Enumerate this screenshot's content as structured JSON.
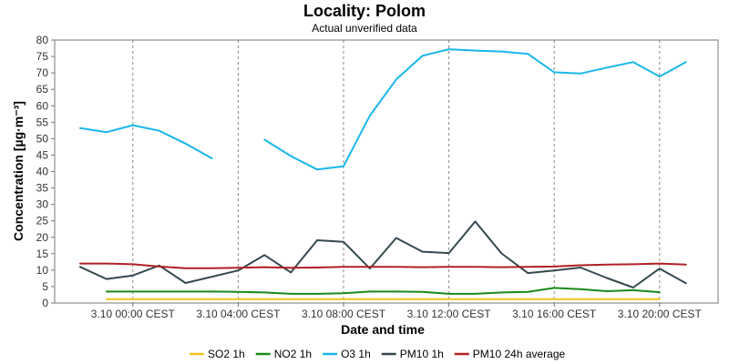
{
  "chart_data": {
    "type": "line",
    "title": "Locality: Polom",
    "subtitle": "Actual unverified data",
    "xlabel": "Date and time",
    "ylabel": "Concentration [µg·m⁻³]",
    "ylim": [
      0,
      80
    ],
    "y_ticks": [
      0,
      5,
      10,
      15,
      20,
      25,
      30,
      35,
      40,
      45,
      50,
      55,
      60,
      65,
      70,
      75,
      80
    ],
    "x_range": [
      "3.10 22:00 CEST",
      "3.10 21:00 CEST"
    ],
    "x": [
      "3.10 22:00 CEST",
      "3.10 23:00 CEST",
      "3.10 00:00 CEST",
      "3.10 01:00 CEST",
      "3.10 02:00 CEST",
      "3.10 03:00 CEST",
      "3.10 04:00 CEST",
      "3.10 05:00 CEST",
      "3.10 06:00 CEST",
      "3.10 07:00 CEST",
      "3.10 08:00 CEST",
      "3.10 09:00 CEST",
      "3.10 10:00 CEST",
      "3.10 11:00 CEST",
      "3.10 12:00 CEST",
      "3.10 13:00 CEST",
      "3.10 14:00 CEST",
      "3.10 15:00 CEST",
      "3.10 16:00 CEST",
      "3.10 17:00 CEST",
      "3.10 18:00 CEST",
      "3.10 19:00 CEST",
      "3.10 20:00 CEST",
      "3.10 21:00 CEST"
    ],
    "x_tick_labels": [
      "3.10 00:00 CEST",
      "3.10 04:00 CEST",
      "3.10 08:00 CEST",
      "3.10 12:00 CEST",
      "3.10 16:00 CEST",
      "3.10 20:00 CEST"
    ],
    "x_tick_index": [
      2,
      6,
      10,
      14,
      18,
      22
    ],
    "grid": "vertical dashed at labeled ticks",
    "legend_position": "bottom",
    "series": [
      {
        "name": "SO2 1h",
        "color": "#f2c31c",
        "values": [
          null,
          1.2,
          1.2,
          1.2,
          1.2,
          1.2,
          1.2,
          1.2,
          1.2,
          1.2,
          1.2,
          1.2,
          1.2,
          1.2,
          1.2,
          1.2,
          1.2,
          1.2,
          1.2,
          1.2,
          1.2,
          1.2,
          1.2,
          null
        ]
      },
      {
        "name": "NO2 1h",
        "color": "#1a8a1a",
        "values": [
          null,
          3.5,
          3.5,
          3.5,
          3.5,
          3.5,
          3.4,
          3.2,
          2.8,
          2.8,
          3.0,
          3.5,
          3.5,
          3.4,
          2.8,
          2.8,
          3.2,
          3.4,
          4.6,
          4.2,
          3.6,
          3.9,
          3.3,
          null
        ]
      },
      {
        "name": "O3 1h",
        "color": "#1ab7ea",
        "values": [
          53.2,
          52.0,
          54.1,
          52.4,
          48.5,
          44.0,
          null,
          49.7,
          44.7,
          40.6,
          41.6,
          57.0,
          68.0,
          75.2,
          77.2,
          76.8,
          76.5,
          75.8,
          70.2,
          69.8,
          71.6,
          73.3,
          68.9,
          73.3
        ]
      },
      {
        "name": "PM10 1h",
        "color": "#35494f",
        "values": [
          11.0,
          7.3,
          8.4,
          11.4,
          6.1,
          8.0,
          9.9,
          14.6,
          9.3,
          19.1,
          18.6,
          10.5,
          19.8,
          15.6,
          15.2,
          24.8,
          15.1,
          9.1,
          9.9,
          10.8,
          7.6,
          4.7,
          10.5,
          6.0
        ]
      },
      {
        "name": "PM10 24h average",
        "color": "#b02025",
        "values": [
          12.0,
          12.0,
          11.8,
          11.1,
          10.6,
          10.6,
          10.7,
          10.9,
          10.7,
          10.8,
          11.0,
          11.0,
          11.0,
          10.9,
          11.0,
          11.0,
          10.9,
          11.0,
          11.1,
          11.5,
          11.7,
          11.8,
          12.0,
          11.7
        ]
      }
    ]
  }
}
